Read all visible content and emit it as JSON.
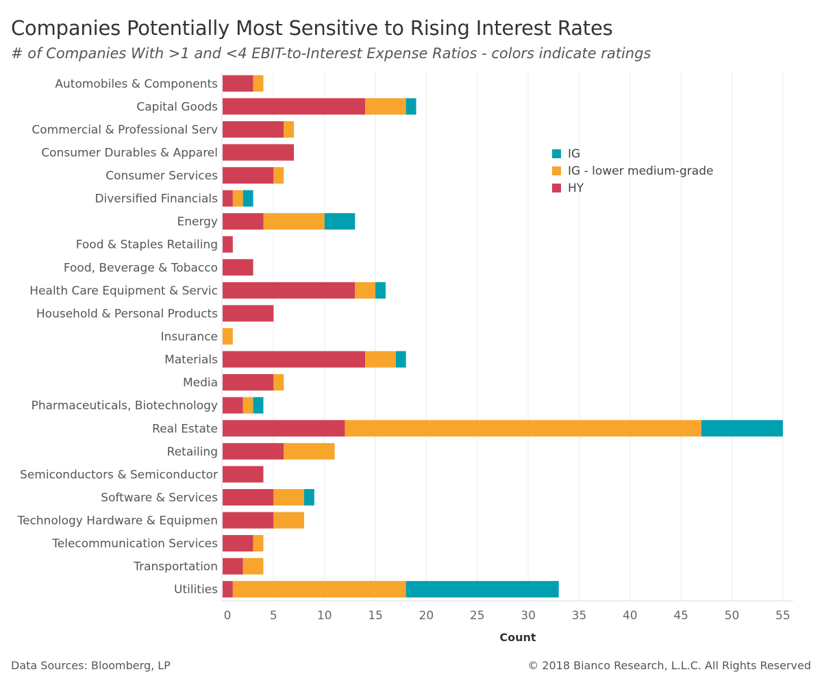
{
  "title": "Companies Potentially Most Sensitive to Rising Interest Rates",
  "subtitle": "# of Companies With >1 and <4 EBIT-to-Interest Expense Ratios - colors indicate ratings",
  "footer": {
    "left": "Data Sources: Bloomberg, LP",
    "right": "© 2018 Bianco Research, L.L.C. All Rights Reserved"
  },
  "chart_data": {
    "type": "bar",
    "orientation": "horizontal",
    "stacked": true,
    "categories": [
      "Automobiles & Components",
      "Capital Goods",
      "Commercial & Professional Serv",
      "Consumer Durables & Apparel",
      "Consumer Services",
      "Diversified Financials",
      "Energy",
      "Food & Staples Retailing",
      "Food, Beverage & Tobacco",
      "Health Care Equipment & Servic",
      "Household & Personal Products",
      "Insurance",
      "Materials",
      "Media",
      "Pharmaceuticals, Biotechnology",
      "Real Estate",
      "Retailing",
      "Semiconductors & Semiconductor",
      "Software & Services",
      "Technology Hardware & Equipmen",
      "Telecommunication Services",
      "Transportation",
      "Utilities"
    ],
    "series": [
      {
        "name": "HY",
        "color": "#d04055",
        "values": [
          3,
          14,
          6,
          7,
          5,
          1,
          4,
          1,
          3,
          13,
          5,
          0,
          14,
          5,
          2,
          12,
          6,
          4,
          5,
          5,
          3,
          2,
          1
        ]
      },
      {
        "name": "IG - lower medium-grade",
        "color": "#f7a52c",
        "values": [
          1,
          4,
          1,
          0,
          1,
          1,
          6,
          0,
          0,
          2,
          0,
          1,
          3,
          1,
          1,
          35,
          5,
          0,
          3,
          3,
          1,
          2,
          17
        ]
      },
      {
        "name": "IG",
        "color": "#00a0b0",
        "values": [
          0,
          1,
          0,
          0,
          0,
          1,
          3,
          0,
          0,
          1,
          0,
          0,
          1,
          0,
          1,
          8,
          0,
          0,
          1,
          0,
          0,
          0,
          15
        ]
      }
    ],
    "legend_order": [
      "IG",
      "IG - lower medium-grade",
      "HY"
    ],
    "legend_position": "top-right",
    "xlabel": "Count",
    "ylabel": "",
    "xlim": [
      0,
      56
    ],
    "xticks": [
      0,
      5,
      10,
      15,
      20,
      25,
      30,
      35,
      40,
      45,
      50,
      55
    ],
    "grid": "vertical"
  }
}
